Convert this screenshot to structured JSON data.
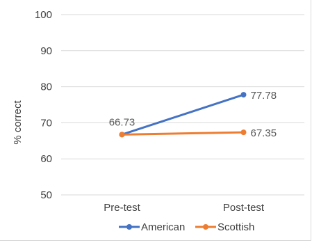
{
  "chart_data": {
    "type": "line",
    "title": "",
    "xlabel": "",
    "ylabel": "% correct",
    "categories": [
      "Pre-test",
      "Post-test"
    ],
    "ylim": [
      50,
      100
    ],
    "yticks": [
      50,
      60,
      70,
      80,
      90,
      100
    ],
    "grid": true,
    "legend_position": "bottom",
    "series": [
      {
        "name": "American",
        "values": [
          66.73,
          77.78
        ],
        "color": "#4472C4",
        "labels": [
          "66.73",
          "77.78"
        ]
      },
      {
        "name": "Scottish",
        "values": [
          66.73,
          67.35
        ],
        "color": "#ED7D31",
        "labels": [
          "",
          "67.35"
        ]
      }
    ]
  }
}
